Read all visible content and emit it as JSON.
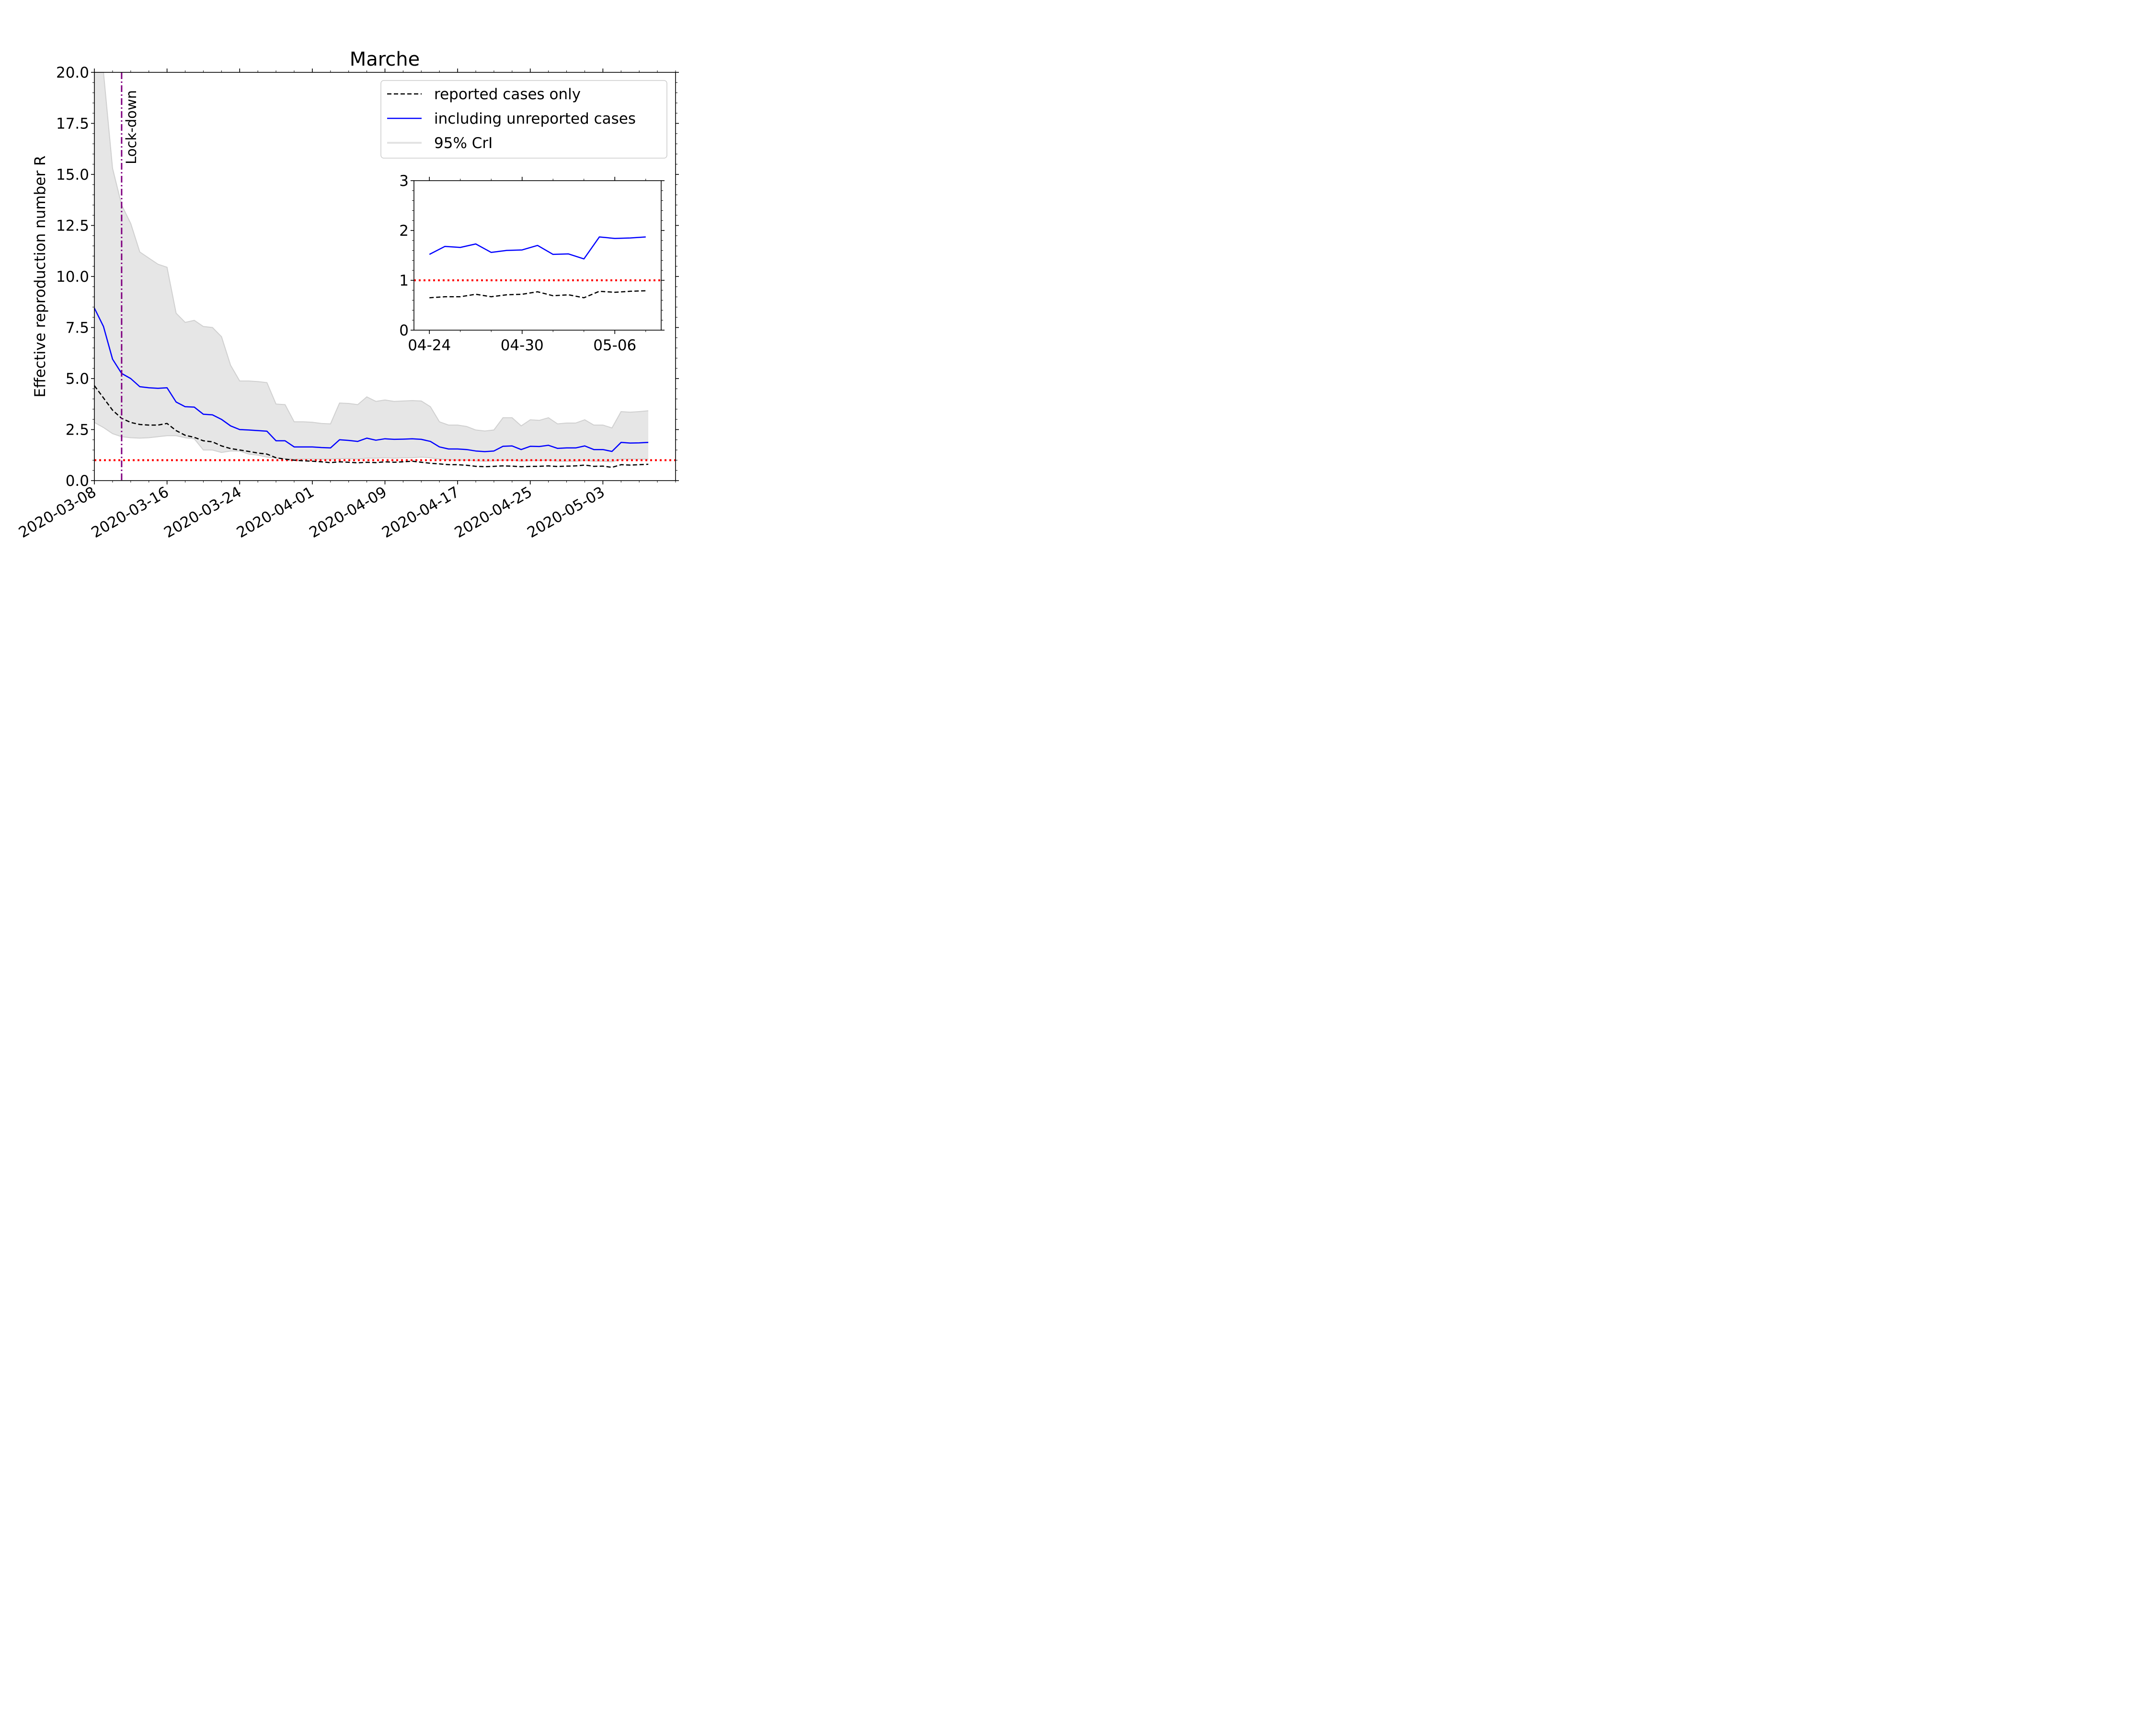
{
  "colors": {
    "reported": "#000000",
    "unreported": "#0000ff",
    "band": "#e6e6e6",
    "band_edge": "#d0d0d0",
    "threshold": "#ff0000",
    "lockdown": "#800080"
  },
  "chart_data": [
    {
      "type": "line",
      "title": "Marche",
      "xlabel": "",
      "ylabel": "Effective reproduction number R",
      "x_type": "date",
      "x_start": "2020-03-08",
      "x_end": "2020-05-11",
      "x_ticks": [
        "2020-03-08",
        "2020-03-16",
        "2020-03-24",
        "2020-04-01",
        "2020-04-09",
        "2020-04-17",
        "2020-04-25",
        "2020-05-03"
      ],
      "ylim": [
        0,
        20
      ],
      "y_ticks": [
        "0.0",
        "2.5",
        "5.0",
        "7.5",
        "10.0",
        "12.5",
        "15.0",
        "17.5",
        "20.0"
      ],
      "grid": false,
      "legend_position": "top-right",
      "legend": [
        "reported cases only",
        "including unreported cases",
        "95% CrI"
      ],
      "annotation": {
        "label": "Lock-down",
        "x": "2020-03-11"
      },
      "reference_line": {
        "y": 1.0,
        "style": "dotted red"
      },
      "x": [
        "2020-03-08",
        "2020-03-09",
        "2020-03-10",
        "2020-03-11",
        "2020-03-12",
        "2020-03-13",
        "2020-03-14",
        "2020-03-15",
        "2020-03-16",
        "2020-03-17",
        "2020-03-18",
        "2020-03-19",
        "2020-03-20",
        "2020-03-21",
        "2020-03-22",
        "2020-03-23",
        "2020-03-24",
        "2020-03-25",
        "2020-03-26",
        "2020-03-27",
        "2020-03-28",
        "2020-03-29",
        "2020-03-30",
        "2020-03-31",
        "2020-04-01",
        "2020-04-02",
        "2020-04-03",
        "2020-04-04",
        "2020-04-05",
        "2020-04-06",
        "2020-04-07",
        "2020-04-08",
        "2020-04-09",
        "2020-04-10",
        "2020-04-11",
        "2020-04-12",
        "2020-04-13",
        "2020-04-14",
        "2020-04-15",
        "2020-04-16",
        "2020-04-17",
        "2020-04-18",
        "2020-04-19",
        "2020-04-20",
        "2020-04-21",
        "2020-04-22",
        "2020-04-23",
        "2020-04-24",
        "2020-04-25",
        "2020-04-26",
        "2020-04-27",
        "2020-04-28",
        "2020-04-29",
        "2020-04-30",
        "2020-05-01",
        "2020-05-02",
        "2020-05-03",
        "2020-05-04",
        "2020-05-05",
        "2020-05-06",
        "2020-05-07",
        "2020-05-08"
      ],
      "series": [
        {
          "name": "including unreported cases",
          "style": "solid",
          "values": [
            8.45,
            7.55,
            5.95,
            5.25,
            5.0,
            4.6,
            4.55,
            4.52,
            4.55,
            3.85,
            3.62,
            3.6,
            3.25,
            3.22,
            3.0,
            2.68,
            2.5,
            2.48,
            2.45,
            2.42,
            1.95,
            1.95,
            1.65,
            1.65,
            1.65,
            1.62,
            1.6,
            2.0,
            1.97,
            1.92,
            2.08,
            1.98,
            2.05,
            2.02,
            2.03,
            2.05,
            2.02,
            1.92,
            1.65,
            1.55,
            1.55,
            1.52,
            1.45,
            1.42,
            1.45,
            1.68,
            1.7,
            1.52,
            1.68,
            1.67,
            1.73,
            1.58,
            1.6,
            1.6,
            1.7,
            1.52,
            1.52,
            1.43,
            1.87,
            1.84,
            1.85,
            1.87
          ]
        },
        {
          "name": "reported cases only",
          "style": "dashed",
          "values": [
            4.65,
            4.05,
            3.45,
            3.05,
            2.85,
            2.75,
            2.72,
            2.72,
            2.8,
            2.45,
            2.22,
            2.12,
            1.95,
            1.9,
            1.7,
            1.57,
            1.5,
            1.43,
            1.35,
            1.3,
            1.12,
            1.05,
            1.0,
            0.97,
            0.95,
            0.92,
            0.88,
            0.92,
            0.9,
            0.87,
            0.9,
            0.88,
            0.92,
            0.9,
            0.92,
            0.95,
            0.9,
            0.85,
            0.82,
            0.78,
            0.78,
            0.75,
            0.7,
            0.68,
            0.7,
            0.72,
            0.71,
            0.68,
            0.7,
            0.7,
            0.72,
            0.69,
            0.71,
            0.72,
            0.76,
            0.7,
            0.71,
            0.65,
            0.78,
            0.76,
            0.78,
            0.8
          ]
        }
      ],
      "ci_band": {
        "name": "95% CrI",
        "upper": [
          20.0,
          20.0,
          15.3,
          13.5,
          12.6,
          11.2,
          10.9,
          10.6,
          10.45,
          8.2,
          7.75,
          7.85,
          7.55,
          7.5,
          7.05,
          5.65,
          4.88,
          4.88,
          4.85,
          4.8,
          3.75,
          3.72,
          2.88,
          2.88,
          2.86,
          2.8,
          2.78,
          3.8,
          3.78,
          3.72,
          4.1,
          3.88,
          3.95,
          3.88,
          3.9,
          3.92,
          3.9,
          3.62,
          2.88,
          2.72,
          2.72,
          2.65,
          2.48,
          2.43,
          2.48,
          3.08,
          3.08,
          2.68,
          2.98,
          2.95,
          3.08,
          2.78,
          2.82,
          2.82,
          2.98,
          2.72,
          2.72,
          2.58,
          3.38,
          3.35,
          3.38,
          3.42
        ],
        "lower": [
          2.85,
          2.6,
          2.3,
          2.15,
          2.1,
          2.08,
          2.1,
          2.15,
          2.2,
          2.2,
          2.1,
          2.05,
          1.5,
          1.5,
          1.38,
          1.45,
          1.45,
          1.3,
          1.25,
          1.15,
          1.1,
          1.08,
          1.05,
          1.05,
          1.05,
          1.05,
          1.05,
          1.08,
          1.08,
          1.05,
          1.1,
          1.1,
          1.12,
          1.1,
          1.12,
          1.12,
          1.15,
          1.12,
          1.05,
          1.02,
          1.0,
          1.0,
          0.97,
          0.95,
          0.97,
          1.0,
          1.0,
          0.95,
          0.98,
          0.98,
          1.0,
          0.95,
          0.95,
          0.95,
          0.98,
          0.95,
          0.95,
          0.92,
          1.05,
          1.05,
          1.05,
          1.05
        ]
      }
    },
    {
      "type": "line",
      "title": "",
      "x_type": "date",
      "x_start": "2020-04-23",
      "x_end": "2020-05-09",
      "x_ticks": [
        "04-24",
        "04-30",
        "05-06"
      ],
      "x_tick_dates": [
        "2020-04-24",
        "2020-04-30",
        "2020-05-06"
      ],
      "ylim": [
        0,
        3
      ],
      "y_ticks": [
        "0",
        "1",
        "2",
        "3"
      ],
      "reference_line": {
        "y": 1.0,
        "style": "dotted red"
      },
      "x": [
        "2020-04-24",
        "2020-04-25",
        "2020-04-26",
        "2020-04-27",
        "2020-04-28",
        "2020-04-29",
        "2020-04-30",
        "2020-05-01",
        "2020-05-02",
        "2020-05-03",
        "2020-05-04",
        "2020-05-05",
        "2020-05-06",
        "2020-05-07",
        "2020-05-08"
      ],
      "series": [
        {
          "name": "including unreported cases",
          "style": "solid",
          "values": [
            1.52,
            1.68,
            1.66,
            1.73,
            1.56,
            1.6,
            1.61,
            1.7,
            1.52,
            1.53,
            1.43,
            1.87,
            1.84,
            1.85,
            1.87
          ]
        },
        {
          "name": "reported cases only",
          "style": "dashed",
          "values": [
            0.65,
            0.67,
            0.67,
            0.72,
            0.67,
            0.71,
            0.72,
            0.77,
            0.69,
            0.71,
            0.65,
            0.78,
            0.76,
            0.78,
            0.79
          ]
        }
      ]
    }
  ]
}
